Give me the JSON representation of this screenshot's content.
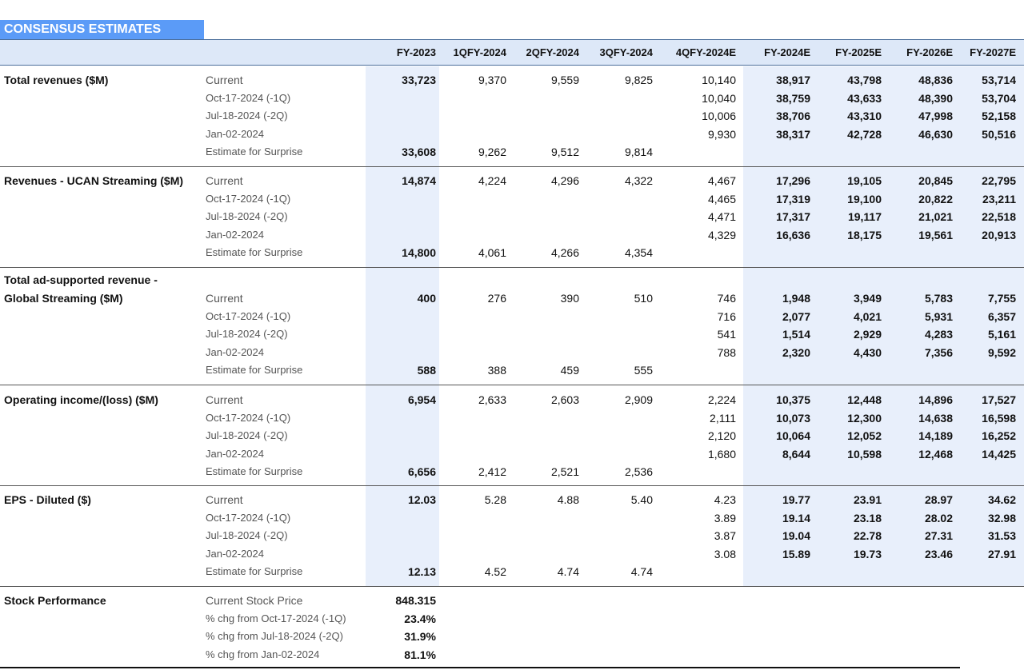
{
  "title": "CONSENSUS ESTIMATES",
  "columns": [
    "FY-2023",
    "1QFY-2024",
    "2QFY-2024",
    "3QFY-2024",
    "4QFY-2024E",
    "FY-2024E",
    "FY-2025E",
    "FY-2026E",
    "FY-2027E"
  ],
  "row_labels": [
    "Current",
    "Oct-17-2024 (-1Q)",
    "Jul-18-2024 (-2Q)",
    "Jan-02-2024",
    "Estimate for Surprise"
  ],
  "sections": [
    {
      "label_lines": [
        "Total revenues ($M)"
      ],
      "rows": [
        [
          "33,723",
          "9,370",
          "9,559",
          "9,825",
          "10,140",
          "38,917",
          "43,798",
          "48,836",
          "53,714"
        ],
        [
          "",
          "",
          "",
          "",
          "10,040",
          "38,759",
          "43,633",
          "48,390",
          "53,704"
        ],
        [
          "",
          "",
          "",
          "",
          "10,006",
          "38,706",
          "43,310",
          "47,998",
          "52,158"
        ],
        [
          "",
          "",
          "",
          "",
          "9,930",
          "38,317",
          "42,728",
          "46,630",
          "50,516"
        ],
        [
          "33,608",
          "9,262",
          "9,512",
          "9,814",
          "",
          "",
          "",
          "",
          ""
        ]
      ]
    },
    {
      "label_lines": [
        "Revenues - UCAN Streaming ($M)"
      ],
      "rows": [
        [
          "14,874",
          "4,224",
          "4,296",
          "4,322",
          "4,467",
          "17,296",
          "19,105",
          "20,845",
          "22,795"
        ],
        [
          "",
          "",
          "",
          "",
          "4,465",
          "17,319",
          "19,100",
          "20,822",
          "23,211"
        ],
        [
          "",
          "",
          "",
          "",
          "4,471",
          "17,317",
          "19,117",
          "21,021",
          "22,518"
        ],
        [
          "",
          "",
          "",
          "",
          "4,329",
          "16,636",
          "18,175",
          "19,561",
          "20,913"
        ],
        [
          "14,800",
          "4,061",
          "4,266",
          "4,354",
          "",
          "",
          "",
          "",
          ""
        ]
      ]
    },
    {
      "label_lines": [
        "Total ad-supported revenue -",
        "Global Streaming ($M)"
      ],
      "rows": [
        [
          "400",
          "276",
          "390",
          "510",
          "746",
          "1,948",
          "3,949",
          "5,783",
          "7,755"
        ],
        [
          "",
          "",
          "",
          "",
          "716",
          "2,077",
          "4,021",
          "5,931",
          "6,357"
        ],
        [
          "",
          "",
          "",
          "",
          "541",
          "1,514",
          "2,929",
          "4,283",
          "5,161"
        ],
        [
          "",
          "",
          "",
          "",
          "788",
          "2,320",
          "4,430",
          "7,356",
          "9,592"
        ],
        [
          "588",
          "388",
          "459",
          "555",
          "",
          "",
          "",
          "",
          ""
        ]
      ]
    },
    {
      "label_lines": [
        "Operating income/(loss) ($M)"
      ],
      "rows": [
        [
          "6,954",
          "2,633",
          "2,603",
          "2,909",
          "2,224",
          "10,375",
          "12,448",
          "14,896",
          "17,527"
        ],
        [
          "",
          "",
          "",
          "",
          "2,111",
          "10,073",
          "12,300",
          "14,638",
          "16,598"
        ],
        [
          "",
          "",
          "",
          "",
          "2,120",
          "10,064",
          "12,052",
          "14,189",
          "16,252"
        ],
        [
          "",
          "",
          "",
          "",
          "1,680",
          "8,644",
          "10,598",
          "12,468",
          "14,425"
        ],
        [
          "6,656",
          "2,412",
          "2,521",
          "2,536",
          "",
          "",
          "",
          "",
          ""
        ]
      ]
    },
    {
      "label_lines": [
        "EPS - Diluted ($)"
      ],
      "rows": [
        [
          "12.03",
          "5.28",
          "4.88",
          "5.40",
          "4.23",
          "19.77",
          "23.91",
          "28.97",
          "34.62"
        ],
        [
          "",
          "",
          "",
          "",
          "3.89",
          "19.14",
          "23.18",
          "28.02",
          "32.98"
        ],
        [
          "",
          "",
          "",
          "",
          "3.87",
          "19.04",
          "22.78",
          "27.31",
          "31.53"
        ],
        [
          "",
          "",
          "",
          "",
          "3.08",
          "15.89",
          "19.73",
          "23.46",
          "27.91"
        ],
        [
          "12.13",
          "4.52",
          "4.74",
          "4.74",
          "",
          "",
          "",
          "",
          ""
        ]
      ]
    }
  ],
  "stock": {
    "label": "Stock Performance",
    "rows": [
      {
        "label": "Current Stock Price",
        "value": "848.315"
      },
      {
        "label": "% chg from Oct-17-2024 (-1Q)",
        "value": "23.4%"
      },
      {
        "label": "% chg from Jul-18-2024 (-2Q)",
        "value": "31.9%"
      },
      {
        "label": "% chg from Jan-02-2024",
        "value": "81.1%"
      }
    ]
  }
}
